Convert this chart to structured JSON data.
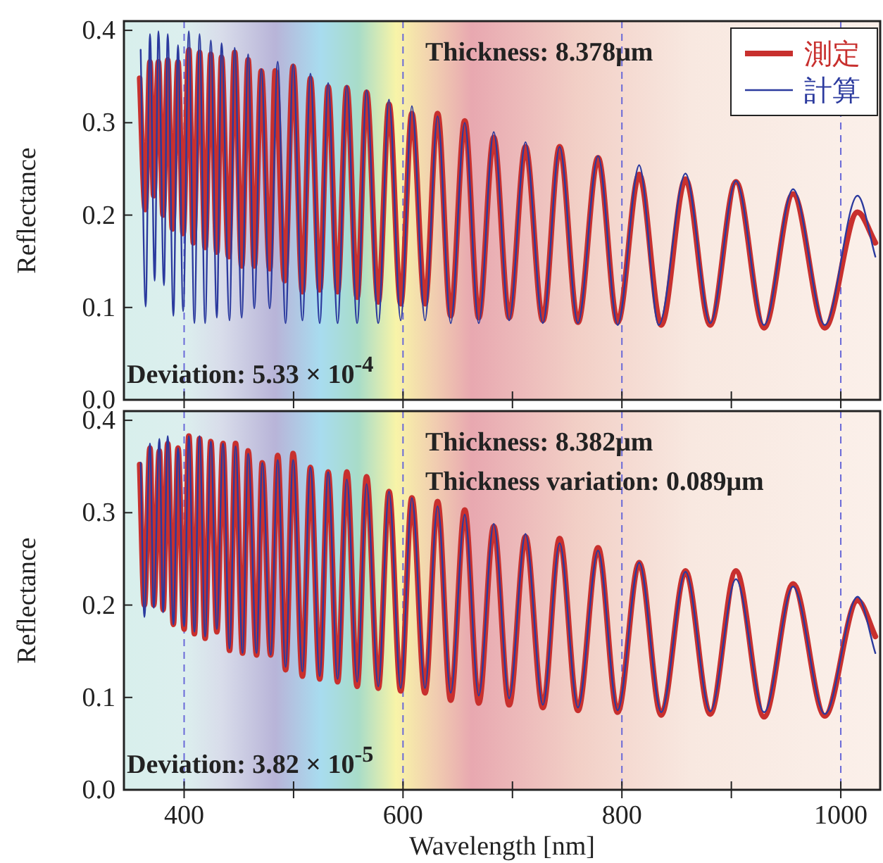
{
  "chart_data": [
    {
      "type": "line",
      "ylabel": "Reflectance",
      "xlim": [
        345,
        1036
      ],
      "ylim": [
        0,
        0.41
      ],
      "xticks": [
        400,
        {
          "value": 500,
          "label": null
        },
        600,
        {
          "value": 700,
          "label": null
        },
        800,
        {
          "value": 900,
          "label": null
        },
        1000
      ],
      "yticks": [
        {
          "value": 0,
          "label": "0.0"
        },
        {
          "value": 0.1,
          "label": "0.1"
        },
        {
          "value": 0.2,
          "label": "0.2"
        },
        {
          "value": 0.3,
          "label": "0.3"
        },
        {
          "value": 0.4,
          "label": "0.4"
        }
      ],
      "tick_labels": "y",
      "legend": "top right",
      "marker": "none",
      "line_style": "solid",
      "ref_lines": [
        {
          "axis": "x",
          "value": 400,
          "color": "#6a6ad8",
          "line_style": "dashed"
        },
        {
          "axis": "x",
          "value": 600,
          "color": "#6a6ad8",
          "line_style": "dashed"
        },
        {
          "axis": "x",
          "value": 800,
          "color": "#6a6ad8",
          "line_style": "dashed"
        },
        {
          "axis": "x",
          "value": 1000,
          "color": "#6a6ad8",
          "line_style": "dashed"
        }
      ],
      "annotations": [
        "Thickness: 8.378μm",
        "Deviation: 5.33 × 10$^{-4}$"
      ],
      "series": [
        {
          "name": "測定",
          "color": "#c8302e",
          "x": [
            359.4,
            364.5,
            368.8,
            372.2,
            376.5,
            380.8,
            385.0,
            389.3,
            394.4,
            399.1,
            404.3,
            408.5,
            414.1,
            419.2,
            424.4,
            429.9,
            434.2,
            440.6,
            446.2,
            452.6,
            458.5,
            464.1,
            470.5,
            478.2,
            483.3,
            491.9,
            499.6,
            508.1,
            515.4,
            523.9,
            531.6,
            540.2,
            548.7,
            558.1,
            566.7,
            577.4,
            587.2,
            597.9,
            608.1,
            620.1,
            631.6,
            643.6,
            656.4,
            669.2,
            682.9,
            697.0,
            711.9,
            727.8,
            743.1,
            759.8,
            778.2,
            796.1,
            815.8,
            835.9,
            858.1,
            880.7,
            904.2,
            929.9,
            956.4,
            985.4,
            1015.3,
            1031.6
          ],
          "values": [
            0.348,
            0.206,
            0.366,
            0.221,
            0.366,
            0.2,
            0.368,
            0.185,
            0.366,
            0.18,
            0.379,
            0.17,
            0.376,
            0.165,
            0.374,
            0.16,
            0.371,
            0.155,
            0.376,
            0.145,
            0.368,
            0.145,
            0.356,
            0.142,
            0.356,
            0.129,
            0.361,
            0.117,
            0.348,
            0.119,
            0.339,
            0.117,
            0.338,
            0.111,
            0.333,
            0.106,
            0.32,
            0.104,
            0.31,
            0.104,
            0.31,
            0.091,
            0.302,
            0.089,
            0.284,
            0.089,
            0.274,
            0.086,
            0.274,
            0.084,
            0.262,
            0.084,
            0.244,
            0.081,
            0.239,
            0.081,
            0.236,
            0.078,
            0.223,
            0.078,
            0.203,
            0.17
          ]
        },
        {
          "name": "計算",
          "color": "#2b3a9e",
          "x": [
            360.3,
            364.9,
            368.8,
            373.1,
            376.5,
            381.6,
            385.0,
            390.2,
            394.4,
            399.1,
            404.3,
            409.4,
            414.1,
            419.2,
            424.4,
            429.9,
            434.2,
            441.5,
            446.2,
            452.6,
            458.5,
            464.1,
            470.5,
            478.2,
            485.5,
            492.7,
            499.6,
            508.1,
            515.4,
            523.9,
            531.6,
            540.2,
            548.7,
            558.1,
            566.7,
            577.4,
            587.2,
            597.9,
            608.1,
            620.1,
            631.6,
            643.6,
            656.4,
            669.2,
            682.9,
            697.0,
            711.9,
            727.8,
            743.1,
            759.8,
            778.2,
            796.1,
            815.8,
            833.7,
            858.1,
            880.7,
            904.2,
            929.9,
            956.4,
            985.4,
            1015.3,
            1031.6
          ],
          "values": [
            0.379,
            0.101,
            0.396,
            0.129,
            0.399,
            0.124,
            0.396,
            0.091,
            0.384,
            0.096,
            0.399,
            0.083,
            0.396,
            0.083,
            0.389,
            0.089,
            0.386,
            0.086,
            0.381,
            0.089,
            0.374,
            0.099,
            0.358,
            0.099,
            0.366,
            0.083,
            0.363,
            0.086,
            0.353,
            0.083,
            0.343,
            0.083,
            0.34,
            0.083,
            0.335,
            0.083,
            0.325,
            0.086,
            0.318,
            0.086,
            0.307,
            0.083,
            0.3,
            0.083,
            0.29,
            0.086,
            0.279,
            0.083,
            0.274,
            0.083,
            0.264,
            0.081,
            0.254,
            0.081,
            0.245,
            0.083,
            0.237,
            0.081,
            0.228,
            0.081,
            0.221,
            0.155
          ]
        }
      ]
    },
    {
      "type": "line",
      "xlabel": "Wavelength [nm]",
      "ylabel": "Reflectance",
      "xlim": [
        345,
        1036
      ],
      "ylim": [
        0,
        0.41
      ],
      "xticks": [
        400,
        {
          "value": 500,
          "label": null
        },
        600,
        {
          "value": 700,
          "label": null
        },
        800,
        {
          "value": 900,
          "label": null
        },
        1000
      ],
      "yticks": [
        {
          "value": 0,
          "label": "0.0"
        },
        {
          "value": 0.1,
          "label": "0.1"
        },
        {
          "value": 0.2,
          "label": "0.2"
        },
        {
          "value": 0.3,
          "label": "0.3"
        },
        {
          "value": 0.4,
          "label": "0.4"
        }
      ],
      "marker": "none",
      "line_style": "solid",
      "ref_lines": [
        {
          "axis": "x",
          "value": 400,
          "color": "#6a6ad8",
          "line_style": "dashed"
        },
        {
          "axis": "x",
          "value": 600,
          "color": "#6a6ad8",
          "line_style": "dashed"
        },
        {
          "axis": "x",
          "value": 800,
          "color": "#6a6ad8",
          "line_style": "dashed"
        },
        {
          "axis": "x",
          "value": 1000,
          "color": "#6a6ad8",
          "line_style": "dashed"
        }
      ],
      "annotations": [
        "Thickness: 8.382μm",
        "Thickness variation: 0.089μm",
        "Deviation: 3.82 × 10$^{-5}$"
      ],
      "series": [
        {
          "color": "#c8302e",
          "x": [
            359.4,
            363.7,
            368.8,
            372.2,
            377.4,
            380.8,
            385.0,
            390.2,
            394.4,
            400.0,
            404.3,
            409.4,
            414.1,
            419.2,
            424.4,
            429.9,
            435.5,
            441.5,
            447.0,
            453.4,
            458.5,
            466.2,
            471.4,
            479.1,
            485.5,
            492.7,
            499.6,
            508.1,
            515.4,
            523.9,
            531.6,
            540.2,
            548.7,
            558.1,
            566.7,
            577.4,
            587.2,
            597.9,
            608.1,
            620.1,
            631.6,
            643.6,
            656.4,
            669.2,
            682.9,
            697.0,
            711.9,
            727.8,
            743.1,
            759.8,
            778.2,
            796.1,
            815.8,
            835.9,
            858.1,
            880.7,
            904.2,
            929.9,
            956.4,
            985.4,
            1015.3,
            1031.6
          ],
          "values": [
            0.352,
            0.2,
            0.37,
            0.2,
            0.367,
            0.195,
            0.375,
            0.179,
            0.37,
            0.174,
            0.383,
            0.169,
            0.38,
            0.164,
            0.377,
            0.171,
            0.375,
            0.151,
            0.375,
            0.148,
            0.367,
            0.146,
            0.354,
            0.146,
            0.362,
            0.13,
            0.364,
            0.123,
            0.349,
            0.12,
            0.344,
            0.117,
            0.344,
            0.112,
            0.339,
            0.11,
            0.323,
            0.107,
            0.316,
            0.105,
            0.312,
            0.097,
            0.303,
            0.094,
            0.285,
            0.092,
            0.274,
            0.089,
            0.272,
            0.086,
            0.262,
            0.084,
            0.246,
            0.081,
            0.237,
            0.082,
            0.237,
            0.079,
            0.223,
            0.08,
            0.205,
            0.166
          ]
        },
        {
          "color": "#2b3a9e",
          "x": [
            360.3,
            363.7,
            368.8,
            372.2,
            377.4,
            380.8,
            385.0,
            390.2,
            394.4,
            400.0,
            404.3,
            409.4,
            414.1,
            419.2,
            424.4,
            429.9,
            435.5,
            441.5,
            447.0,
            453.4,
            458.5,
            466.2,
            471.4,
            479.1,
            485.5,
            492.7,
            499.6,
            508.1,
            515.4,
            523.9,
            531.6,
            540.2,
            548.7,
            558.1,
            566.7,
            577.4,
            587.2,
            597.9,
            608.1,
            620.1,
            631.6,
            643.6,
            656.4,
            669.2,
            682.9,
            697.0,
            711.9,
            727.8,
            743.1,
            759.8,
            778.2,
            796.1,
            815.8,
            835.9,
            858.1,
            880.7,
            904.2,
            929.9,
            956.4,
            985.4,
            1015.3,
            1031.6
          ],
          "values": [
            0.354,
            0.187,
            0.375,
            0.197,
            0.38,
            0.192,
            0.383,
            0.179,
            0.37,
            0.177,
            0.383,
            0.171,
            0.383,
            0.166,
            0.377,
            0.174,
            0.375,
            0.153,
            0.372,
            0.148,
            0.364,
            0.148,
            0.354,
            0.146,
            0.357,
            0.133,
            0.357,
            0.128,
            0.349,
            0.123,
            0.344,
            0.12,
            0.336,
            0.117,
            0.331,
            0.112,
            0.323,
            0.11,
            0.316,
            0.11,
            0.307,
            0.105,
            0.298,
            0.102,
            0.288,
            0.099,
            0.277,
            0.092,
            0.267,
            0.089,
            0.259,
            0.086,
            0.246,
            0.084,
            0.236,
            0.085,
            0.228,
            0.084,
            0.22,
            0.082,
            0.209,
            0.148
          ]
        }
      ]
    }
  ]
}
